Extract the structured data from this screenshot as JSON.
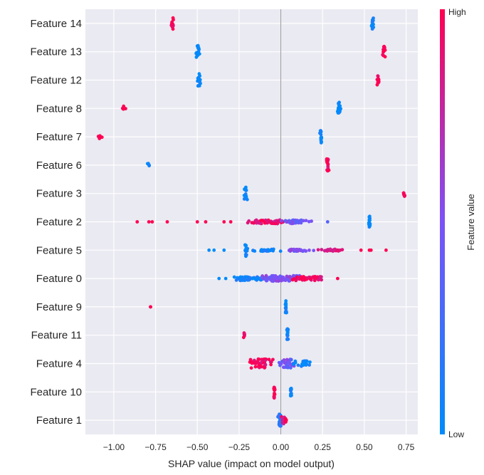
{
  "chart_data": {
    "type": "scatter",
    "subtype": "shap-beeswarm-summary",
    "xlabel": "SHAP value (impact on model output)",
    "xlim": [
      -1.17,
      0.82
    ],
    "xticks": [
      -1.0,
      -0.75,
      -0.5,
      -0.25,
      0.0,
      0.25,
      0.5,
      0.75
    ],
    "xtick_labels": [
      "−1.00",
      "−0.75",
      "−0.50",
      "−0.25",
      "0.00",
      "0.25",
      "0.50",
      "0.75"
    ],
    "grid": true,
    "background_color": "#eaeaf2",
    "colorbar": {
      "title": "Feature value",
      "high_label": "High",
      "low_label": "Low",
      "high_color": "#ff0051",
      "low_color": "#008bfb"
    },
    "features": [
      {
        "name": "Feature 14",
        "clusters": [
          {
            "x": -0.65,
            "v": 1.0,
            "n": 12,
            "spread": 0.01,
            "w": 0.4
          },
          {
            "x": 0.55,
            "v": 0.0,
            "n": 16,
            "spread": 0.01,
            "w": 0.45
          }
        ]
      },
      {
        "name": "Feature 13",
        "clusters": [
          {
            "x": -0.5,
            "v": 0.0,
            "n": 16,
            "spread": 0.01,
            "w": 0.45
          },
          {
            "x": 0.62,
            "v": 1.0,
            "n": 14,
            "spread": 0.01,
            "w": 0.42
          }
        ]
      },
      {
        "name": "Feature 12",
        "clusters": [
          {
            "x": -0.49,
            "v": 0.0,
            "n": 16,
            "spread": 0.01,
            "w": 0.45
          },
          {
            "x": 0.58,
            "v": 1.0,
            "n": 12,
            "spread": 0.01,
            "w": 0.35
          }
        ]
      },
      {
        "name": "Feature 8",
        "clusters": [
          {
            "x": -0.94,
            "v": 1.0,
            "n": 6,
            "spread": 0.01,
            "w": 0.2
          },
          {
            "x": 0.35,
            "v": 0.0,
            "n": 16,
            "spread": 0.01,
            "w": 0.45
          }
        ]
      },
      {
        "name": "Feature 7",
        "clusters": [
          {
            "x": -1.08,
            "v": 1.0,
            "n": 5,
            "spread": 0.01,
            "w": 0.15
          },
          {
            "x": 0.24,
            "v": 0.0,
            "n": 16,
            "spread": 0.01,
            "w": 0.45
          }
        ]
      },
      {
        "name": "Feature 6",
        "clusters": [
          {
            "x": -0.79,
            "v": 0.0,
            "n": 4,
            "spread": 0.01,
            "w": 0.12
          },
          {
            "x": 0.28,
            "v": 1.0,
            "n": 16,
            "spread": 0.01,
            "w": 0.45
          }
        ]
      },
      {
        "name": "Feature 3",
        "clusters": [
          {
            "x": -0.21,
            "v": 0.0,
            "n": 16,
            "spread": 0.01,
            "w": 0.45
          },
          {
            "x": 0.74,
            "v": 1.0,
            "n": 6,
            "spread": 0.01,
            "w": 0.2
          }
        ]
      },
      {
        "name": "Feature 2",
        "clusters": [
          {
            "x": -0.08,
            "v": 0.9,
            "n": 60,
            "spread": 0.12,
            "w": 0.13
          },
          {
            "x": 0.08,
            "v": 0.45,
            "n": 40,
            "spread": 0.09,
            "w": 0.13
          },
          {
            "x": 0.53,
            "v": 0.0,
            "n": 14,
            "spread": 0.005,
            "w": 0.4
          }
        ],
        "singles": [
          [
            -0.86,
            1.0
          ],
          [
            -0.79,
            1.0
          ],
          [
            -0.77,
            1.0
          ],
          [
            -0.68,
            1.0
          ],
          [
            -0.5,
            1.0
          ],
          [
            -0.45,
            1.0
          ],
          [
            -0.34,
            1.0
          ],
          [
            -0.3,
            1.0
          ],
          [
            0.28,
            0.35
          ]
        ]
      },
      {
        "name": "Feature 5",
        "clusters": [
          {
            "x": -0.21,
            "v": 0.0,
            "n": 16,
            "spread": 0.01,
            "w": 0.45
          },
          {
            "x": -0.1,
            "v": 0.05,
            "n": 30,
            "spread": 0.08,
            "w": 0.07
          },
          {
            "x": 0.1,
            "v": 0.5,
            "n": 30,
            "spread": 0.08,
            "w": 0.07
          },
          {
            "x": 0.3,
            "v": 0.9,
            "n": 28,
            "spread": 0.07,
            "w": 0.07
          }
        ],
        "singles": [
          [
            -0.43,
            0.0
          ],
          [
            -0.4,
            0.0
          ],
          [
            -0.34,
            0.0
          ],
          [
            0.48,
            1.0
          ],
          [
            0.53,
            1.0
          ],
          [
            0.54,
            1.0
          ],
          [
            0.63,
            1.0
          ]
        ]
      },
      {
        "name": "Feature 0",
        "clusters": [
          {
            "x": -0.2,
            "v": 0.05,
            "n": 50,
            "spread": 0.09,
            "w": 0.14
          },
          {
            "x": 0.0,
            "v": 0.5,
            "n": 80,
            "spread": 0.1,
            "w": 0.2
          },
          {
            "x": 0.17,
            "v": 0.95,
            "n": 50,
            "spread": 0.09,
            "w": 0.14
          }
        ],
        "singles": [
          [
            -0.37,
            0.0
          ],
          [
            0.34,
            1.0
          ],
          [
            -0.33,
            0.0
          ]
        ]
      },
      {
        "name": "Feature 9",
        "clusters": [
          {
            "x": 0.03,
            "v": 0.0,
            "n": 16,
            "spread": 0.005,
            "w": 0.45
          }
        ],
        "singles": [
          [
            -0.78,
            1.0
          ],
          [
            -0.78,
            1.0
          ]
        ]
      },
      {
        "name": "Feature 11",
        "clusters": [
          {
            "x": -0.22,
            "v": 1.0,
            "n": 6,
            "spread": 0.005,
            "w": 0.18
          },
          {
            "x": 0.04,
            "v": 0.0,
            "n": 16,
            "spread": 0.005,
            "w": 0.45
          }
        ]
      },
      {
        "name": "Feature 4",
        "clusters": [
          {
            "x": -0.12,
            "v": 0.95,
            "n": 45,
            "spread": 0.07,
            "w": 0.32
          },
          {
            "x": 0.04,
            "v": 0.45,
            "n": 35,
            "spread": 0.05,
            "w": 0.3
          },
          {
            "x": 0.14,
            "v": 0.05,
            "n": 25,
            "spread": 0.05,
            "w": 0.2
          }
        ]
      },
      {
        "name": "Feature 10",
        "clusters": [
          {
            "x": -0.04,
            "v": 1.0,
            "n": 16,
            "spread": 0.005,
            "w": 0.45
          },
          {
            "x": 0.06,
            "v": 0.0,
            "n": 10,
            "spread": 0.005,
            "w": 0.3
          }
        ]
      },
      {
        "name": "Feature 1",
        "clusters": [
          {
            "x": -0.005,
            "v": 0.2,
            "n": 25,
            "spread": 0.01,
            "w": 0.45
          },
          {
            "x": 0.01,
            "v": 0.9,
            "n": 12,
            "spread": 0.01,
            "w": 0.3
          },
          {
            "x": 0.03,
            "v": 1.0,
            "n": 4,
            "spread": 0.005,
            "w": 0.15
          }
        ]
      }
    ]
  }
}
